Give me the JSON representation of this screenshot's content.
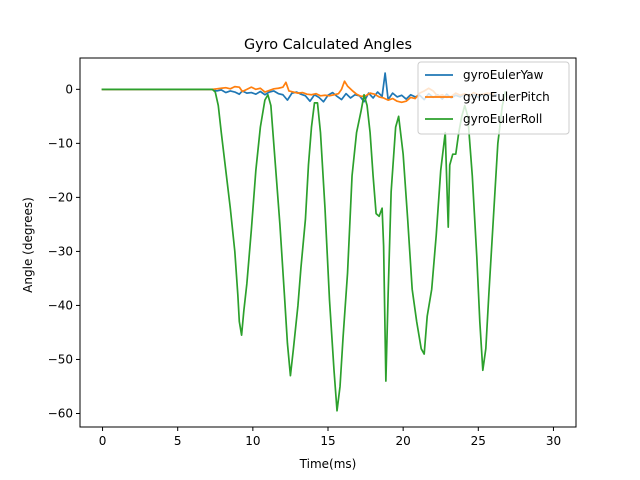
{
  "chart_data": {
    "type": "line",
    "title": "Gyro Calculated Angles",
    "xlabel": "Time(ms)",
    "ylabel": "Angle (degrees)",
    "xlim": [
      -1.5,
      31.5
    ],
    "ylim": [
      -62.5,
      5.8
    ],
    "x_ticks": [
      0,
      5,
      10,
      15,
      20,
      25,
      30
    ],
    "y_ticks": [
      0,
      -10,
      -20,
      -30,
      -40,
      -50,
      -60
    ],
    "grid": false,
    "legend_position": "top-right",
    "series": [
      {
        "name": "gyroEulerYaw",
        "color": "#1f77b4",
        "points": [
          [
            0,
            0
          ],
          [
            7.3,
            0
          ],
          [
            7.6,
            -0.3
          ],
          [
            7.9,
            -0.1
          ],
          [
            8.2,
            -0.6
          ],
          [
            8.5,
            -0.3
          ],
          [
            8.8,
            -0.5
          ],
          [
            9.1,
            -0.9
          ],
          [
            9.3,
            -0.3
          ],
          [
            9.6,
            -0.7
          ],
          [
            9.9,
            -0.6
          ],
          [
            10.2,
            -0.9
          ],
          [
            10.5,
            -0.4
          ],
          [
            10.8,
            -1.0
          ],
          [
            11.1,
            -0.5
          ],
          [
            11.4,
            -0.3
          ],
          [
            11.7,
            -0.8
          ],
          [
            12.0,
            -1.0
          ],
          [
            12.3,
            -2.0
          ],
          [
            12.6,
            -0.7
          ],
          [
            12.9,
            -0.5
          ],
          [
            13.2,
            -0.9
          ],
          [
            13.5,
            -1.2
          ],
          [
            13.8,
            -2.2
          ],
          [
            14.1,
            -1.0
          ],
          [
            14.4,
            -1.5
          ],
          [
            14.7,
            -2.3
          ],
          [
            15.0,
            -1.1
          ],
          [
            15.3,
            -0.6
          ],
          [
            15.6,
            -1.3
          ],
          [
            15.9,
            -1.9
          ],
          [
            16.2,
            -0.8
          ],
          [
            16.5,
            -1.6
          ],
          [
            16.8,
            -1.0
          ],
          [
            17.1,
            -1.2
          ],
          [
            17.4,
            -2.3
          ],
          [
            17.7,
            -0.7
          ],
          [
            18.0,
            -1.6
          ],
          [
            18.3,
            -0.5
          ],
          [
            18.6,
            -1.3
          ],
          [
            18.8,
            3.0
          ],
          [
            19.0,
            -1.9
          ],
          [
            19.3,
            -0.7
          ],
          [
            19.6,
            -1.4
          ],
          [
            19.9,
            -1.1
          ],
          [
            20.2,
            -1.8
          ],
          [
            20.5,
            -1.0
          ],
          [
            20.8,
            -1.4
          ],
          [
            21.1,
            -1.1
          ],
          [
            21.4,
            -1.9
          ],
          [
            21.7,
            -0.8
          ],
          [
            22.0,
            -1.5
          ],
          [
            22.3,
            -1.0
          ],
          [
            22.6,
            -1.8
          ],
          [
            22.9,
            -0.9
          ],
          [
            23.2,
            -1.6
          ],
          [
            23.5,
            -1.1
          ],
          [
            23.8,
            -1.4
          ],
          [
            24.1,
            -0.9
          ],
          [
            24.4,
            -1.3
          ],
          [
            24.7,
            -1.0
          ],
          [
            25.0,
            -1.5
          ],
          [
            25.3,
            -1.0
          ],
          [
            25.6,
            -1.2
          ],
          [
            25.9,
            -0.8
          ],
          [
            26.2,
            -1.0
          ]
        ]
      },
      {
        "name": "gyroEulerPitch",
        "color": "#ff7f0e",
        "points": [
          [
            0,
            0
          ],
          [
            7.3,
            0
          ],
          [
            7.6,
            0.1
          ],
          [
            7.9,
            0.2
          ],
          [
            8.2,
            0.3
          ],
          [
            8.5,
            0.1
          ],
          [
            8.8,
            0.5
          ],
          [
            9.1,
            0.4
          ],
          [
            9.3,
            -0.4
          ],
          [
            9.6,
            0.0
          ],
          [
            9.9,
            0.4
          ],
          [
            10.2,
            0.0
          ],
          [
            10.5,
            0.2
          ],
          [
            10.8,
            -0.5
          ],
          [
            11.1,
            -0.2
          ],
          [
            11.4,
            0.1
          ],
          [
            11.7,
            0.2
          ],
          [
            12.0,
            0.4
          ],
          [
            12.2,
            1.3
          ],
          [
            12.4,
            -0.3
          ],
          [
            12.7,
            -0.5
          ],
          [
            13.0,
            -0.7
          ],
          [
            13.3,
            -0.6
          ],
          [
            13.6,
            -0.9
          ],
          [
            13.9,
            -1.0
          ],
          [
            14.2,
            -0.8
          ],
          [
            14.5,
            -1.2
          ],
          [
            14.8,
            -1.1
          ],
          [
            15.1,
            -1.2
          ],
          [
            15.4,
            -1.0
          ],
          [
            15.7,
            -0.8
          ],
          [
            15.9,
            0.0
          ],
          [
            16.1,
            1.5
          ],
          [
            16.3,
            0.6
          ],
          [
            16.6,
            -0.2
          ],
          [
            16.9,
            -0.9
          ],
          [
            17.2,
            -1.3
          ],
          [
            17.5,
            -1.2
          ],
          [
            17.8,
            -0.7
          ],
          [
            18.1,
            -0.9
          ],
          [
            18.4,
            -1.4
          ],
          [
            18.7,
            -1.6
          ],
          [
            19.0,
            -2.0
          ],
          [
            19.3,
            -1.7
          ],
          [
            19.6,
            -2.2
          ],
          [
            19.9,
            -2.4
          ],
          [
            20.2,
            -2.2
          ],
          [
            20.5,
            -1.5
          ],
          [
            20.8,
            -1.7
          ],
          [
            21.1,
            -0.7
          ],
          [
            21.4,
            -0.3
          ],
          [
            21.7,
            0.2
          ],
          [
            22.0,
            -0.3
          ],
          [
            22.3,
            -1.3
          ],
          [
            22.6,
            -1.0
          ],
          [
            22.9,
            -1.5
          ],
          [
            23.2,
            -1.3
          ],
          [
            23.5,
            -0.7
          ],
          [
            23.8,
            -1.1
          ],
          [
            24.1,
            -0.8
          ],
          [
            24.4,
            -1.2
          ],
          [
            24.7,
            -0.6
          ],
          [
            25.0,
            -1.0
          ],
          [
            25.3,
            -0.9
          ],
          [
            25.6,
            -0.7
          ],
          [
            26.0,
            -0.9
          ]
        ]
      },
      {
        "name": "gyroEulerRoll",
        "color": "#2ca02c",
        "points": [
          [
            0,
            0
          ],
          [
            7.3,
            0
          ],
          [
            7.5,
            -0.5
          ],
          [
            7.7,
            -3
          ],
          [
            7.9,
            -8
          ],
          [
            8.2,
            -15
          ],
          [
            8.5,
            -22
          ],
          [
            8.8,
            -30
          ],
          [
            9.0,
            -38
          ],
          [
            9.1,
            -43
          ],
          [
            9.25,
            -45.5
          ],
          [
            9.4,
            -41
          ],
          [
            9.6,
            -36
          ],
          [
            9.9,
            -26
          ],
          [
            10.2,
            -15
          ],
          [
            10.5,
            -7
          ],
          [
            10.8,
            -2
          ],
          [
            11.0,
            -1
          ],
          [
            11.2,
            -3
          ],
          [
            11.5,
            -14
          ],
          [
            11.8,
            -25
          ],
          [
            12.1,
            -38
          ],
          [
            12.3,
            -47
          ],
          [
            12.5,
            -53
          ],
          [
            12.7,
            -48
          ],
          [
            13.0,
            -40
          ],
          [
            13.2,
            -33
          ],
          [
            13.5,
            -24
          ],
          [
            13.7,
            -14
          ],
          [
            13.9,
            -7
          ],
          [
            14.1,
            -2.5
          ],
          [
            14.3,
            -2.5
          ],
          [
            14.5,
            -8
          ],
          [
            14.8,
            -22
          ],
          [
            15.1,
            -39
          ],
          [
            15.4,
            -52
          ],
          [
            15.6,
            -59.5
          ],
          [
            15.8,
            -55
          ],
          [
            16.0,
            -46
          ],
          [
            16.3,
            -34
          ],
          [
            16.6,
            -16
          ],
          [
            16.9,
            -8
          ],
          [
            17.2,
            -4
          ],
          [
            17.4,
            -1
          ],
          [
            17.6,
            -3
          ],
          [
            17.8,
            -8
          ],
          [
            18.0,
            -16
          ],
          [
            18.2,
            -23
          ],
          [
            18.4,
            -23.5
          ],
          [
            18.6,
            -22
          ],
          [
            18.7,
            -29
          ],
          [
            18.85,
            -54
          ],
          [
            19.0,
            -38
          ],
          [
            19.2,
            -19
          ],
          [
            19.5,
            -7
          ],
          [
            19.7,
            -5
          ],
          [
            20.0,
            -12
          ],
          [
            20.3,
            -24
          ],
          [
            20.6,
            -37
          ],
          [
            20.9,
            -43
          ],
          [
            21.2,
            -48
          ],
          [
            21.4,
            -49
          ],
          [
            21.6,
            -42
          ],
          [
            21.9,
            -37
          ],
          [
            22.2,
            -27
          ],
          [
            22.5,
            -15
          ],
          [
            22.8,
            -8
          ],
          [
            22.9,
            -17
          ],
          [
            23.0,
            -25.5
          ],
          [
            23.1,
            -14
          ],
          [
            23.3,
            -12
          ],
          [
            23.5,
            -12
          ],
          [
            23.7,
            -8
          ],
          [
            23.9,
            -5
          ],
          [
            24.1,
            -3
          ],
          [
            24.3,
            -5
          ],
          [
            24.6,
            -16
          ],
          [
            24.9,
            -31
          ],
          [
            25.1,
            -43
          ],
          [
            25.3,
            -52
          ],
          [
            25.5,
            -48
          ],
          [
            25.7,
            -38
          ],
          [
            26.0,
            -24
          ],
          [
            26.3,
            -10
          ],
          [
            26.6,
            -3
          ],
          [
            26.8,
            -0.5
          ]
        ]
      }
    ]
  }
}
